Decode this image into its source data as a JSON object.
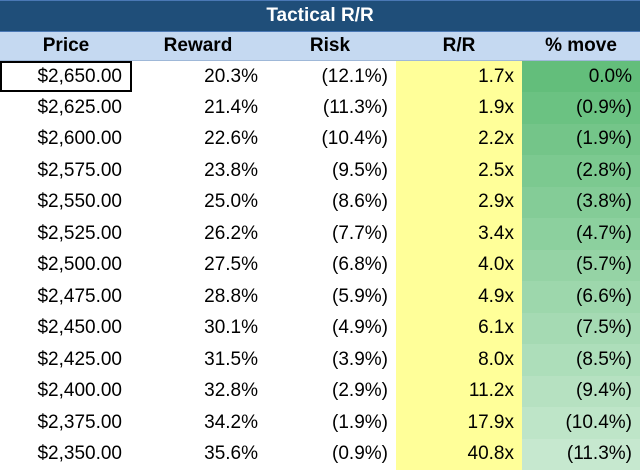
{
  "title": "Tactical R/R",
  "headers": [
    "Price",
    "Reward",
    "Risk",
    "R/R",
    "% move"
  ],
  "colors": {
    "title_bg": "#1f4e79",
    "header_bg": "#c5d9f1",
    "rr_bg": "#ffff99",
    "move_gradient_start": "#63be7b",
    "move_gradient_end": "#c6e8cf"
  },
  "rows": [
    {
      "price": "$2,650.00",
      "reward": "20.3%",
      "risk": "(12.1%)",
      "rr": "1.7x",
      "move": "0.0%",
      "move_pct": 0.0
    },
    {
      "price": "$2,625.00",
      "reward": "21.4%",
      "risk": "(11.3%)",
      "rr": "1.9x",
      "move": "(0.9%)",
      "move_pct": -0.9
    },
    {
      "price": "$2,600.00",
      "reward": "22.6%",
      "risk": "(10.4%)",
      "rr": "2.2x",
      "move": "(1.9%)",
      "move_pct": -1.9
    },
    {
      "price": "$2,575.00",
      "reward": "23.8%",
      "risk": "(9.5%)",
      "rr": "2.5x",
      "move": "(2.8%)",
      "move_pct": -2.8
    },
    {
      "price": "$2,550.00",
      "reward": "25.0%",
      "risk": "(8.6%)",
      "rr": "2.9x",
      "move": "(3.8%)",
      "move_pct": -3.8
    },
    {
      "price": "$2,525.00",
      "reward": "26.2%",
      "risk": "(7.7%)",
      "rr": "3.4x",
      "move": "(4.7%)",
      "move_pct": -4.7
    },
    {
      "price": "$2,500.00",
      "reward": "27.5%",
      "risk": "(6.8%)",
      "rr": "4.0x",
      "move": "(5.7%)",
      "move_pct": -5.7
    },
    {
      "price": "$2,475.00",
      "reward": "28.8%",
      "risk": "(5.9%)",
      "rr": "4.9x",
      "move": "(6.6%)",
      "move_pct": -6.6
    },
    {
      "price": "$2,450.00",
      "reward": "30.1%",
      "risk": "(4.9%)",
      "rr": "6.1x",
      "move": "(7.5%)",
      "move_pct": -7.5
    },
    {
      "price": "$2,425.00",
      "reward": "31.5%",
      "risk": "(3.9%)",
      "rr": "8.0x",
      "move": "(8.5%)",
      "move_pct": -8.5
    },
    {
      "price": "$2,400.00",
      "reward": "32.8%",
      "risk": "(2.9%)",
      "rr": "11.2x",
      "move": "(9.4%)",
      "move_pct": -9.4
    },
    {
      "price": "$2,375.00",
      "reward": "34.2%",
      "risk": "(1.9%)",
      "rr": "17.9x",
      "move": "(10.4%)",
      "move_pct": -10.4
    },
    {
      "price": "$2,350.00",
      "reward": "35.6%",
      "risk": "(0.9%)",
      "rr": "40.8x",
      "move": "(11.3%)",
      "move_pct": -11.3
    }
  ]
}
